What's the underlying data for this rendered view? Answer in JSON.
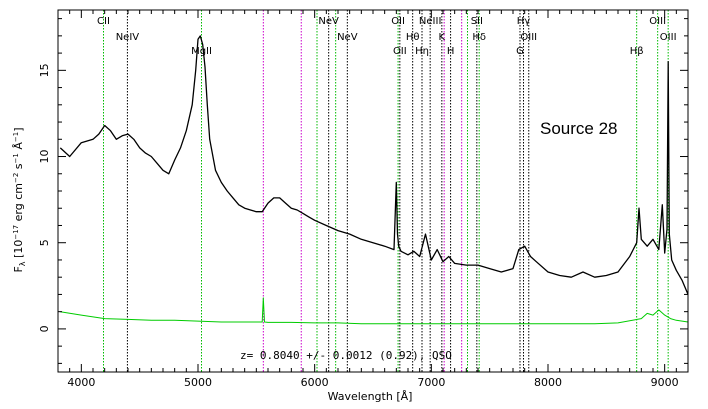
{
  "chart_data": {
    "type": "line",
    "xlabel": "Wavelength [Å]",
    "ylabel": "F_λ [10^-17 erg cm^-2 s^-1 Å^-1]",
    "ylabel_parts": {
      "F": "F",
      "lam": "λ",
      "open": " [10",
      "e1": "−17",
      "erg": " erg cm",
      "e2": "−2",
      "s": " s",
      "e3": "−1",
      "A": " Å",
      "e4": "−1",
      "close": "]"
    },
    "xlim": [
      3800,
      9200
    ],
    "ylim": [
      -2.5,
      18.5
    ],
    "xticks": [
      4000,
      5000,
      6000,
      7000,
      8000,
      9000
    ],
    "xtick_labels": [
      "4000",
      "5000",
      "6000",
      "7000",
      "8000",
      "9000"
    ],
    "yticks": [
      0,
      5,
      10,
      15
    ],
    "ytick_labels": [
      "0",
      "5",
      "10",
      "15"
    ],
    "annotation": "Source 28",
    "footer": "z= 0.8040 +/- 0.0012 (0.92), QSO",
    "colors": {
      "flux": "#000000",
      "error": "#00cc00",
      "green_lines": "#00bb00",
      "black_lines": "#000000",
      "magenta_lines": "#cc00cc"
    },
    "series": [
      {
        "role": "flux",
        "x": [
          3820,
          3900,
          4000,
          4100,
          4150,
          4200,
          4250,
          4300,
          4350,
          4400,
          4450,
          4500,
          4550,
          4600,
          4650,
          4700,
          4750,
          4800,
          4850,
          4900,
          4950,
          4980,
          5000,
          5020,
          5040,
          5060,
          5080,
          5100,
          5150,
          5200,
          5250,
          5300,
          5350,
          5400,
          5450,
          5500,
          5550,
          5600,
          5650,
          5700,
          5750,
          5800,
          5850,
          5900,
          5950,
          6000,
          6100,
          6200,
          6300,
          6400,
          6500,
          6600,
          6680,
          6700,
          6710,
          6720,
          6740,
          6800,
          6850,
          6900,
          6950,
          7000,
          7050,
          7100,
          7150,
          7200,
          7300,
          7400,
          7500,
          7600,
          7700,
          7750,
          7800,
          7850,
          7900,
          8000,
          8100,
          8200,
          8300,
          8400,
          8500,
          8600,
          8700,
          8760,
          8780,
          8800,
          8850,
          8900,
          8950,
          8980,
          9000,
          9020,
          9030,
          9040,
          9060,
          9100,
          9150,
          9200
        ],
        "y": [
          10.5,
          10.0,
          10.8,
          11.0,
          11.3,
          11.8,
          11.5,
          11.0,
          11.2,
          11.3,
          11.0,
          10.5,
          10.2,
          10.0,
          9.6,
          9.2,
          9.0,
          9.8,
          10.5,
          11.5,
          13.0,
          15.0,
          16.8,
          17.0,
          16.5,
          15.2,
          13.0,
          11.0,
          9.2,
          8.5,
          8.0,
          7.6,
          7.2,
          7.0,
          6.9,
          6.8,
          6.8,
          7.3,
          7.6,
          7.6,
          7.3,
          7.0,
          6.9,
          6.7,
          6.5,
          6.3,
          6.0,
          5.7,
          5.5,
          5.2,
          5.0,
          4.8,
          4.6,
          8.5,
          5.5,
          4.8,
          4.5,
          4.3,
          4.5,
          4.2,
          5.5,
          4.0,
          4.6,
          3.9,
          4.2,
          3.8,
          3.7,
          3.7,
          3.5,
          3.3,
          3.5,
          4.6,
          4.8,
          4.2,
          3.9,
          3.3,
          3.1,
          3.0,
          3.3,
          3.0,
          3.1,
          3.3,
          4.2,
          5.0,
          7.0,
          5.2,
          4.8,
          5.2,
          4.6,
          7.2,
          4.4,
          5.8,
          15.5,
          5.5,
          4.0,
          3.4,
          2.8,
          2.0
        ]
      },
      {
        "role": "error",
        "x": [
          3820,
          4000,
          4200,
          4400,
          4600,
          4800,
          5000,
          5200,
          5400,
          5550,
          5560,
          5570,
          5600,
          5800,
          6000,
          6200,
          6400,
          6600,
          6800,
          7000,
          7200,
          7400,
          7600,
          7800,
          8000,
          8200,
          8400,
          8600,
          8800,
          8850,
          8900,
          8950,
          9000,
          9050,
          9100,
          9200
        ],
        "y": [
          1.0,
          0.8,
          0.6,
          0.55,
          0.5,
          0.5,
          0.45,
          0.4,
          0.4,
          0.4,
          1.8,
          0.4,
          0.38,
          0.38,
          0.35,
          0.35,
          0.3,
          0.3,
          0.3,
          0.3,
          0.3,
          0.3,
          0.3,
          0.3,
          0.3,
          0.3,
          0.3,
          0.35,
          0.6,
          0.9,
          0.8,
          1.1,
          0.8,
          0.6,
          0.5,
          0.4
        ]
      }
    ],
    "line_markers": [
      {
        "x": 4190,
        "color": "green",
        "label": "CII",
        "row": 1
      },
      {
        "x": 4395,
        "color": "black",
        "label": "NeIV",
        "row": 2
      },
      {
        "x": 5030,
        "color": "green",
        "label": "MgII",
        "row": 3
      },
      {
        "x": 5560,
        "color": "magenta",
        "label": "",
        "row": 0
      },
      {
        "x": 5885,
        "color": "magenta",
        "label": "",
        "row": 0
      },
      {
        "x": 6020,
        "color": "green",
        "label": "",
        "row": 0
      },
      {
        "x": 6120,
        "color": "black",
        "label": "NeV",
        "row": 1
      },
      {
        "x": 6180,
        "color": "green",
        "label": "",
        "row": 0
      },
      {
        "x": 6280,
        "color": "black",
        "label": "NeV",
        "row": 2
      },
      {
        "x": 6715,
        "color": "green",
        "label": "OII",
        "row": 1
      },
      {
        "x": 6730,
        "color": "black",
        "label": "OII",
        "row": 3
      },
      {
        "x": 6840,
        "color": "black",
        "label": "Hθ",
        "row": 2
      },
      {
        "x": 6920,
        "color": "black",
        "label": "Hη",
        "row": 3
      },
      {
        "x": 6990,
        "color": "black",
        "label": "NeIII",
        "row": 1
      },
      {
        "x": 7090,
        "color": "black",
        "label": "K",
        "row": 2
      },
      {
        "x": 7110,
        "color": "magenta",
        "label": "",
        "row": 0
      },
      {
        "x": 7165,
        "color": "black",
        "label": "H",
        "row": 3
      },
      {
        "x": 7260,
        "color": "magenta",
        "label": "",
        "row": 0
      },
      {
        "x": 7310,
        "color": "green",
        "label": "",
        "row": 0
      },
      {
        "x": 7390,
        "color": "black",
        "label": "SII",
        "row": 1
      },
      {
        "x": 7410,
        "color": "green",
        "label": "Hδ",
        "row": 2
      },
      {
        "x": 7760,
        "color": "black",
        "label": "G",
        "row": 3
      },
      {
        "x": 7790,
        "color": "black",
        "label": "Hγ",
        "row": 1
      },
      {
        "x": 7835,
        "color": "black",
        "label": "OIII",
        "row": 2
      },
      {
        "x": 8760,
        "color": "green",
        "label": "Hβ",
        "row": 3
      },
      {
        "x": 8940,
        "color": "green",
        "label": "OIII",
        "row": 1
      },
      {
        "x": 9030,
        "color": "green",
        "label": "OIII",
        "row": 2
      }
    ]
  }
}
